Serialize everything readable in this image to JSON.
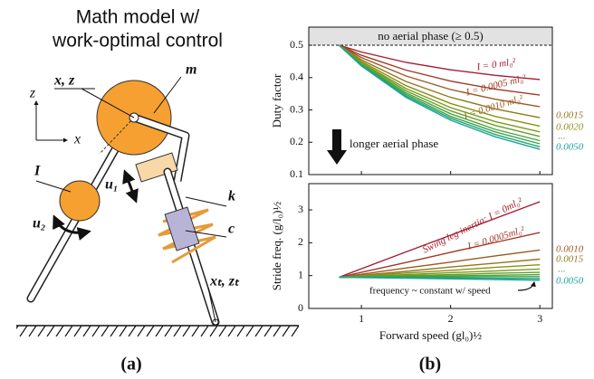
{
  "diagram": {
    "title_lines": [
      "Math model w/",
      "work-optimal control"
    ],
    "labels": {
      "hip": "x, z",
      "mass": "m",
      "axis_z": "z",
      "axis_x": "x",
      "inertia": "I",
      "u1": "u₁",
      "u2": "u₂",
      "spring": "k",
      "damper": "c",
      "toe": "xₜ, zₜ"
    },
    "panel": "(a)"
  },
  "panel_b": "(b)",
  "chart_data": [
    {
      "type": "line",
      "ylabel": "Duty factor",
      "xlim": [
        0.41,
        3.14
      ],
      "ylim": [
        0.1,
        0.556
      ],
      "xticks": [
        1,
        2,
        3
      ],
      "yticks": [
        0.1,
        0.2,
        0.3,
        0.4,
        0.5
      ],
      "threshold": 0.5,
      "threshold_label": "no aerial phase (≥ 0.5)",
      "arrow_label": "longer aerial phase",
      "ellipsis": "...",
      "x": [
        0.75,
        1.0,
        1.5,
        2.0,
        2.5,
        3.0
      ],
      "series": [
        {
          "name": "I = 0 ml₀²",
          "color": "#a51c30",
          "values": [
            0.5,
            0.479,
            0.447,
            0.424,
            0.407,
            0.394
          ]
        },
        {
          "name": "I = 0.0005 ml₀²",
          "color": "#a03a28",
          "values": [
            0.5,
            0.469,
            0.423,
            0.389,
            0.364,
            0.346
          ]
        },
        {
          "name": "I = 0.0010 ml₀²",
          "color": "#9a5a22",
          "values": [
            0.5,
            0.462,
            0.405,
            0.363,
            0.333,
            0.31
          ]
        },
        {
          "name": "0.0015",
          "color": "#93771c",
          "values": [
            0.5,
            0.455,
            0.388,
            0.339,
            0.303,
            0.276
          ]
        },
        {
          "name": "0.0020",
          "color": "#8c8f18",
          "values": [
            0.5,
            0.45,
            0.375,
            0.32,
            0.28,
            0.25
          ]
        },
        {
          "color": "#7c9a1c",
          "values": [
            0.5,
            0.446,
            0.366,
            0.307,
            0.264,
            0.232
          ]
        },
        {
          "color": "#66a02a",
          "values": [
            0.5,
            0.444,
            0.359,
            0.297,
            0.252,
            0.218
          ]
        },
        {
          "color": "#4fa23c",
          "values": [
            0.5,
            0.441,
            0.353,
            0.288,
            0.24,
            0.205
          ]
        },
        {
          "color": "#3aa350",
          "values": [
            0.5,
            0.439,
            0.348,
            0.28,
            0.232,
            0.195
          ]
        },
        {
          "color": "#28a46c",
          "values": [
            0.5,
            0.437,
            0.343,
            0.274,
            0.224,
            0.186
          ]
        },
        {
          "name": "0.0050",
          "color": "#1aa3a0",
          "values": [
            0.5,
            0.436,
            0.339,
            0.268,
            0.217,
            0.178
          ]
        }
      ]
    },
    {
      "type": "line",
      "ylabel": "Stride freq. (g/l₀)½",
      "xlabel": "Forward speed (gl₀)½",
      "xlim": [
        0.41,
        3.14
      ],
      "ylim": [
        0,
        3.8
      ],
      "xticks": [
        1,
        2,
        3
      ],
      "yticks": [
        0,
        1,
        2,
        3
      ],
      "annotation": "frequency ~ constant w/ speed",
      "ellipsis": "...",
      "x": [
        0.75,
        1.0,
        1.5,
        2.0,
        2.5,
        3.0
      ],
      "series": [
        {
          "name": "Swing leg inertia: I = 0ml₀²",
          "color": "#a51c30",
          "values": [
            0.95,
            1.21,
            1.72,
            2.23,
            2.74,
            3.25
          ]
        },
        {
          "name": "I = 0.0005ml₀²",
          "color": "#a03a28",
          "values": [
            0.95,
            1.1,
            1.4,
            1.71,
            2.01,
            2.31
          ]
        },
        {
          "name": "0.0010",
          "color": "#9a5a22",
          "values": [
            0.95,
            1.04,
            1.23,
            1.41,
            1.6,
            1.78
          ]
        },
        {
          "name": "0.0015",
          "color": "#93771c",
          "values": [
            0.95,
            1.01,
            1.13,
            1.26,
            1.38,
            1.5
          ]
        },
        {
          "color": "#8c8f18",
          "values": [
            0.95,
            0.99,
            1.08,
            1.16,
            1.25,
            1.33
          ]
        },
        {
          "color": "#7c9a1c",
          "values": [
            0.95,
            0.98,
            1.03,
            1.09,
            1.14,
            1.2
          ]
        },
        {
          "color": "#66a02a",
          "values": [
            0.95,
            0.97,
            1.0,
            1.03,
            1.07,
            1.1
          ]
        },
        {
          "color": "#4fa23c",
          "values": [
            0.95,
            0.96,
            0.98,
            0.99,
            1.01,
            1.03
          ]
        },
        {
          "color": "#3aa350",
          "values": [
            0.95,
            0.95,
            0.96,
            0.96,
            0.97,
            0.97
          ]
        },
        {
          "color": "#28a46c",
          "values": [
            0.95,
            0.95,
            0.94,
            0.93,
            0.92,
            0.91
          ]
        },
        {
          "name": "0.0050",
          "color": "#1aa3a0",
          "values": [
            0.95,
            0.94,
            0.92,
            0.9,
            0.88,
            0.86
          ]
        }
      ]
    }
  ]
}
